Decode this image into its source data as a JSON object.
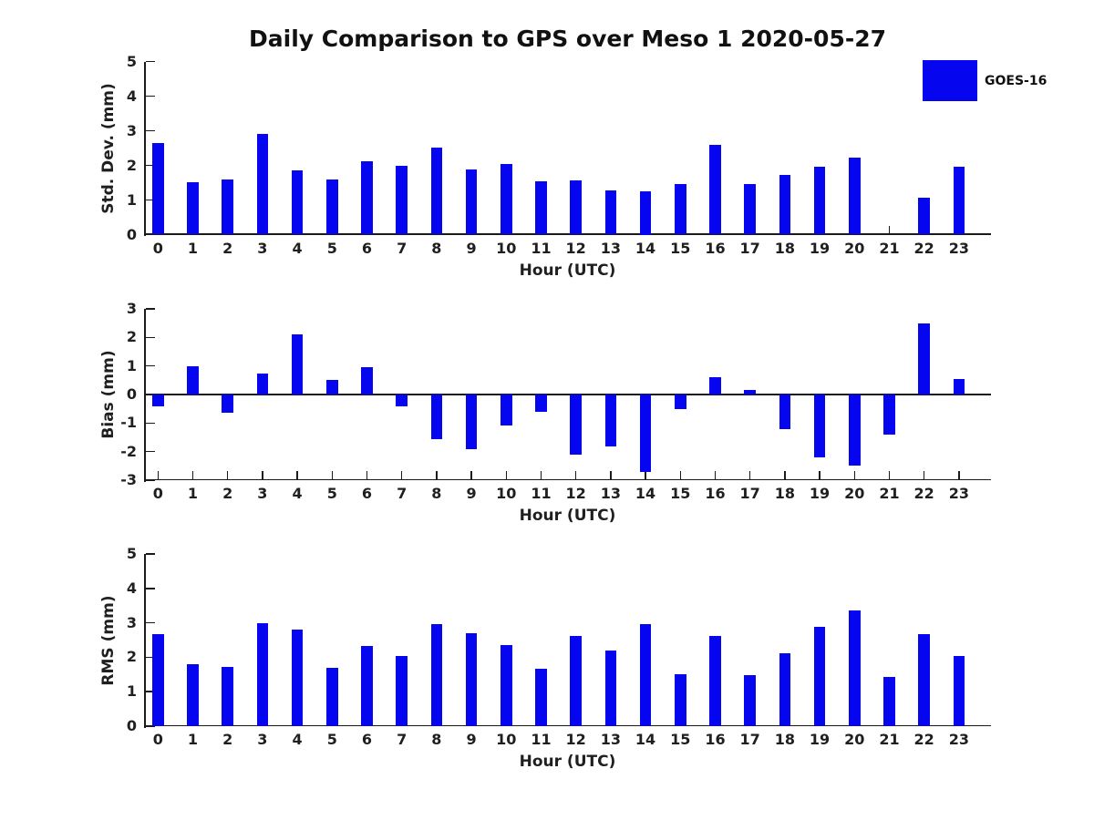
{
  "title": "Daily Comparison to GPS over Meso 1 2020-05-27",
  "legend": {
    "label": "GOES-16",
    "swatch_color": "#0505F0"
  },
  "colors": {
    "bar": "#0505F0",
    "axis": "#1a1a1a",
    "background": "#ffffff"
  },
  "chart_data": [
    {
      "type": "bar",
      "title": "Daily Comparison to GPS over Meso 1 2020-05-27",
      "ylabel": "Std. Dev. (mm)",
      "xlabel": "Hour (UTC)",
      "ylim": [
        0,
        5
      ],
      "yticks": [
        0,
        1,
        2,
        3,
        4,
        5
      ],
      "grid": false,
      "legend_position": "upper-right-outside-plot",
      "categories": [
        "0",
        "1",
        "2",
        "3",
        "4",
        "5",
        "6",
        "7",
        "8",
        "9",
        "10",
        "11",
        "12",
        "13",
        "14",
        "15",
        "16",
        "17",
        "18",
        "19",
        "20",
        "21",
        "22",
        "23"
      ],
      "series": [
        {
          "name": "GOES-16",
          "values": [
            2.64,
            1.52,
            1.59,
            2.9,
            1.85,
            1.6,
            2.11,
            1.98,
            2.52,
            1.87,
            2.05,
            1.53,
            1.57,
            1.27,
            1.25,
            1.45,
            2.58,
            1.47,
            1.72,
            1.97,
            2.22,
            0,
            1.06,
            1.97
          ]
        }
      ]
    },
    {
      "type": "bar",
      "ylabel": "Bias (mm)",
      "xlabel": "Hour (UTC)",
      "ylim": [
        -3,
        3
      ],
      "yticks": [
        -3,
        -2,
        -1,
        0,
        1,
        2,
        3
      ],
      "grid": false,
      "categories": [
        "0",
        "1",
        "2",
        "3",
        "4",
        "5",
        "6",
        "7",
        "8",
        "9",
        "10",
        "11",
        "12",
        "13",
        "14",
        "15",
        "16",
        "17",
        "18",
        "19",
        "20",
        "21",
        "22",
        "23"
      ],
      "series": [
        {
          "name": "GOES-16",
          "values": [
            -0.4,
            1.0,
            -0.65,
            0.72,
            2.1,
            0.5,
            0.95,
            -0.42,
            -1.55,
            -1.9,
            -1.1,
            -0.62,
            -2.1,
            -1.83,
            -2.7,
            -0.5,
            0.6,
            0.15,
            -1.2,
            -2.2,
            -2.5,
            -1.4,
            2.5,
            0.55
          ]
        }
      ]
    },
    {
      "type": "bar",
      "ylabel": "RMS (mm)",
      "xlabel": "Hour (UTC)",
      "ylim": [
        0,
        5
      ],
      "yticks": [
        0,
        1,
        2,
        3,
        4,
        5
      ],
      "grid": false,
      "categories": [
        "0",
        "1",
        "2",
        "3",
        "4",
        "5",
        "6",
        "7",
        "8",
        "9",
        "10",
        "11",
        "12",
        "13",
        "14",
        "15",
        "16",
        "17",
        "18",
        "19",
        "20",
        "21",
        "22",
        "23"
      ],
      "series": [
        {
          "name": "GOES-16",
          "values": [
            2.67,
            1.8,
            1.71,
            2.98,
            2.8,
            1.7,
            2.32,
            2.03,
            2.97,
            2.7,
            2.35,
            1.67,
            2.62,
            2.2,
            2.97,
            1.52,
            2.63,
            1.47,
            2.12,
            2.89,
            3.35,
            1.42,
            2.68,
            2.05
          ]
        }
      ]
    }
  ]
}
